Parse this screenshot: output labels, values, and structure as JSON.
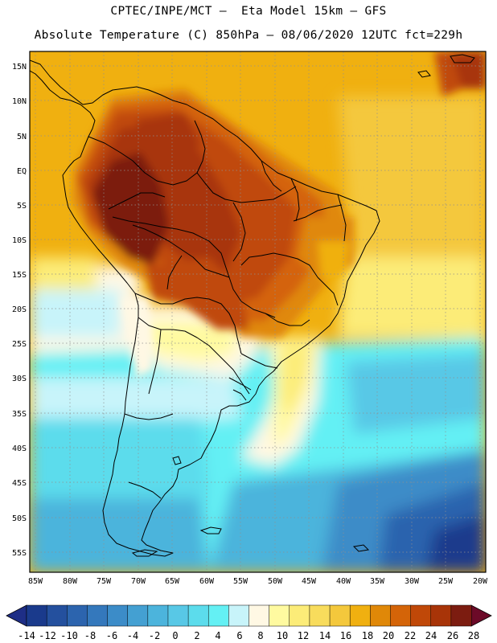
{
  "header": {
    "title_line1": "CPTEC/INPE/MCT –  Eta Model 15km – GFS",
    "title_line2": "Absolute Temperature (C) 850hPa – 08/06/2020 12UTC fct=229h"
  },
  "axes": {
    "lat_labels": [
      "15N",
      "10N",
      "5N",
      "EQ",
      "5S",
      "10S",
      "15S",
      "20S",
      "25S",
      "30S",
      "35S",
      "40S",
      "45S",
      "50S",
      "55S"
    ],
    "lon_labels": [
      "85W",
      "80W",
      "75W",
      "70W",
      "65W",
      "60W",
      "55W",
      "50W",
      "45W",
      "40W",
      "35W",
      "30W",
      "25W",
      "20W"
    ]
  },
  "colorbar": {
    "labels": [
      "-14",
      "-12",
      "-10",
      "-8",
      "-6",
      "-4",
      "-2",
      "0",
      "2",
      "4",
      "6",
      "8",
      "10",
      "12",
      "14",
      "16",
      "18",
      "20",
      "22",
      "24",
      "26",
      "28"
    ],
    "colors": [
      "#1a3a8c",
      "#24509e",
      "#2c64ae",
      "#3478bc",
      "#3c8cc8",
      "#44a0d2",
      "#4cb4dc",
      "#58c8e6",
      "#5cdcec",
      "#64f0f4",
      "#c8f4fa",
      "#fff8e4",
      "#fffaa0",
      "#fcec78",
      "#f8dc5c",
      "#f4c83c",
      "#f0b010",
      "#e08808",
      "#d46408",
      "#c04808",
      "#a83408",
      "#7c1c10"
    ],
    "end_left": "#1e2e86",
    "end_right": "#6c0a28"
  }
}
